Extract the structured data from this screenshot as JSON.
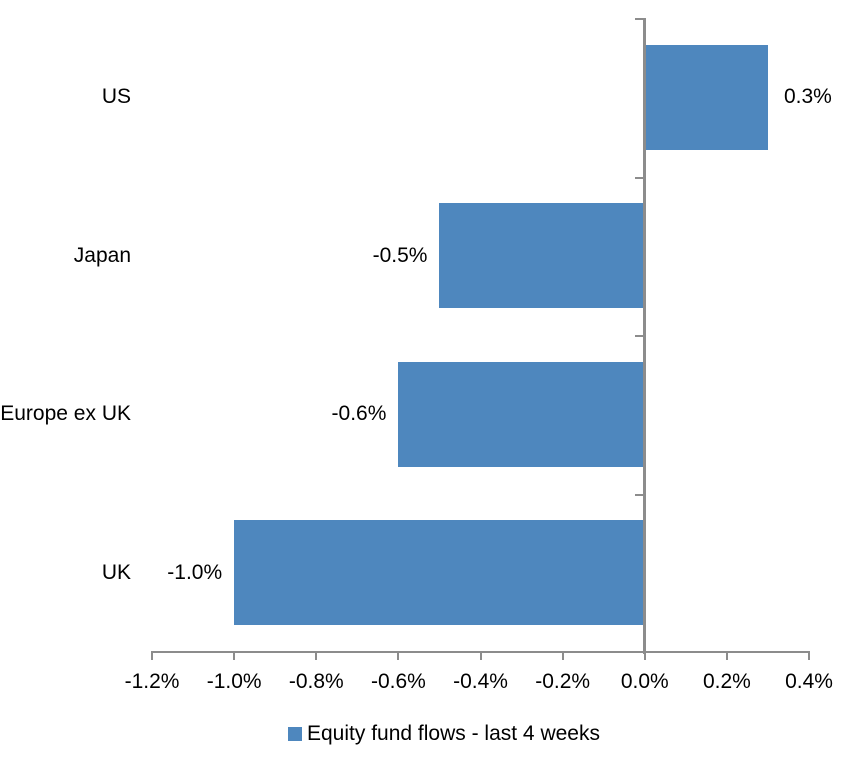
{
  "chart_data": {
    "type": "bar",
    "orientation": "horizontal",
    "title": "",
    "categories": [
      "US",
      "Japan",
      "Europe ex UK",
      "UK"
    ],
    "series": [
      {
        "name": "Equity fund flows - last 4 weeks",
        "values": [
          0.3,
          -0.5,
          -0.6,
          -1.0
        ]
      }
    ],
    "data_labels": [
      "0.3%",
      "-0.5%",
      "-0.6%",
      "-1.0%"
    ],
    "x_axis": {
      "min": -1.2,
      "max": 0.4,
      "tick_step": 0.2,
      "ticks": [
        -1.2,
        -1.0,
        -0.8,
        -0.6,
        -0.4,
        -0.2,
        0.0,
        0.2,
        0.4
      ],
      "tick_labels": [
        "-1.2%",
        "-1.0%",
        "-0.8%",
        "-0.6%",
        "-0.4%",
        "-0.2%",
        "0.0%",
        "0.2%",
        "0.4%"
      ],
      "unit": "%"
    },
    "y_axis": {
      "zero_line": true
    },
    "grid": false,
    "legend": {
      "position": "bottom",
      "label": "Equity fund flows - last 4 weeks"
    },
    "colors": {
      "bar": "#4E87BE",
      "axis": "#8C8C8C",
      "text": "#000000",
      "background": "#FFFFFF"
    }
  }
}
